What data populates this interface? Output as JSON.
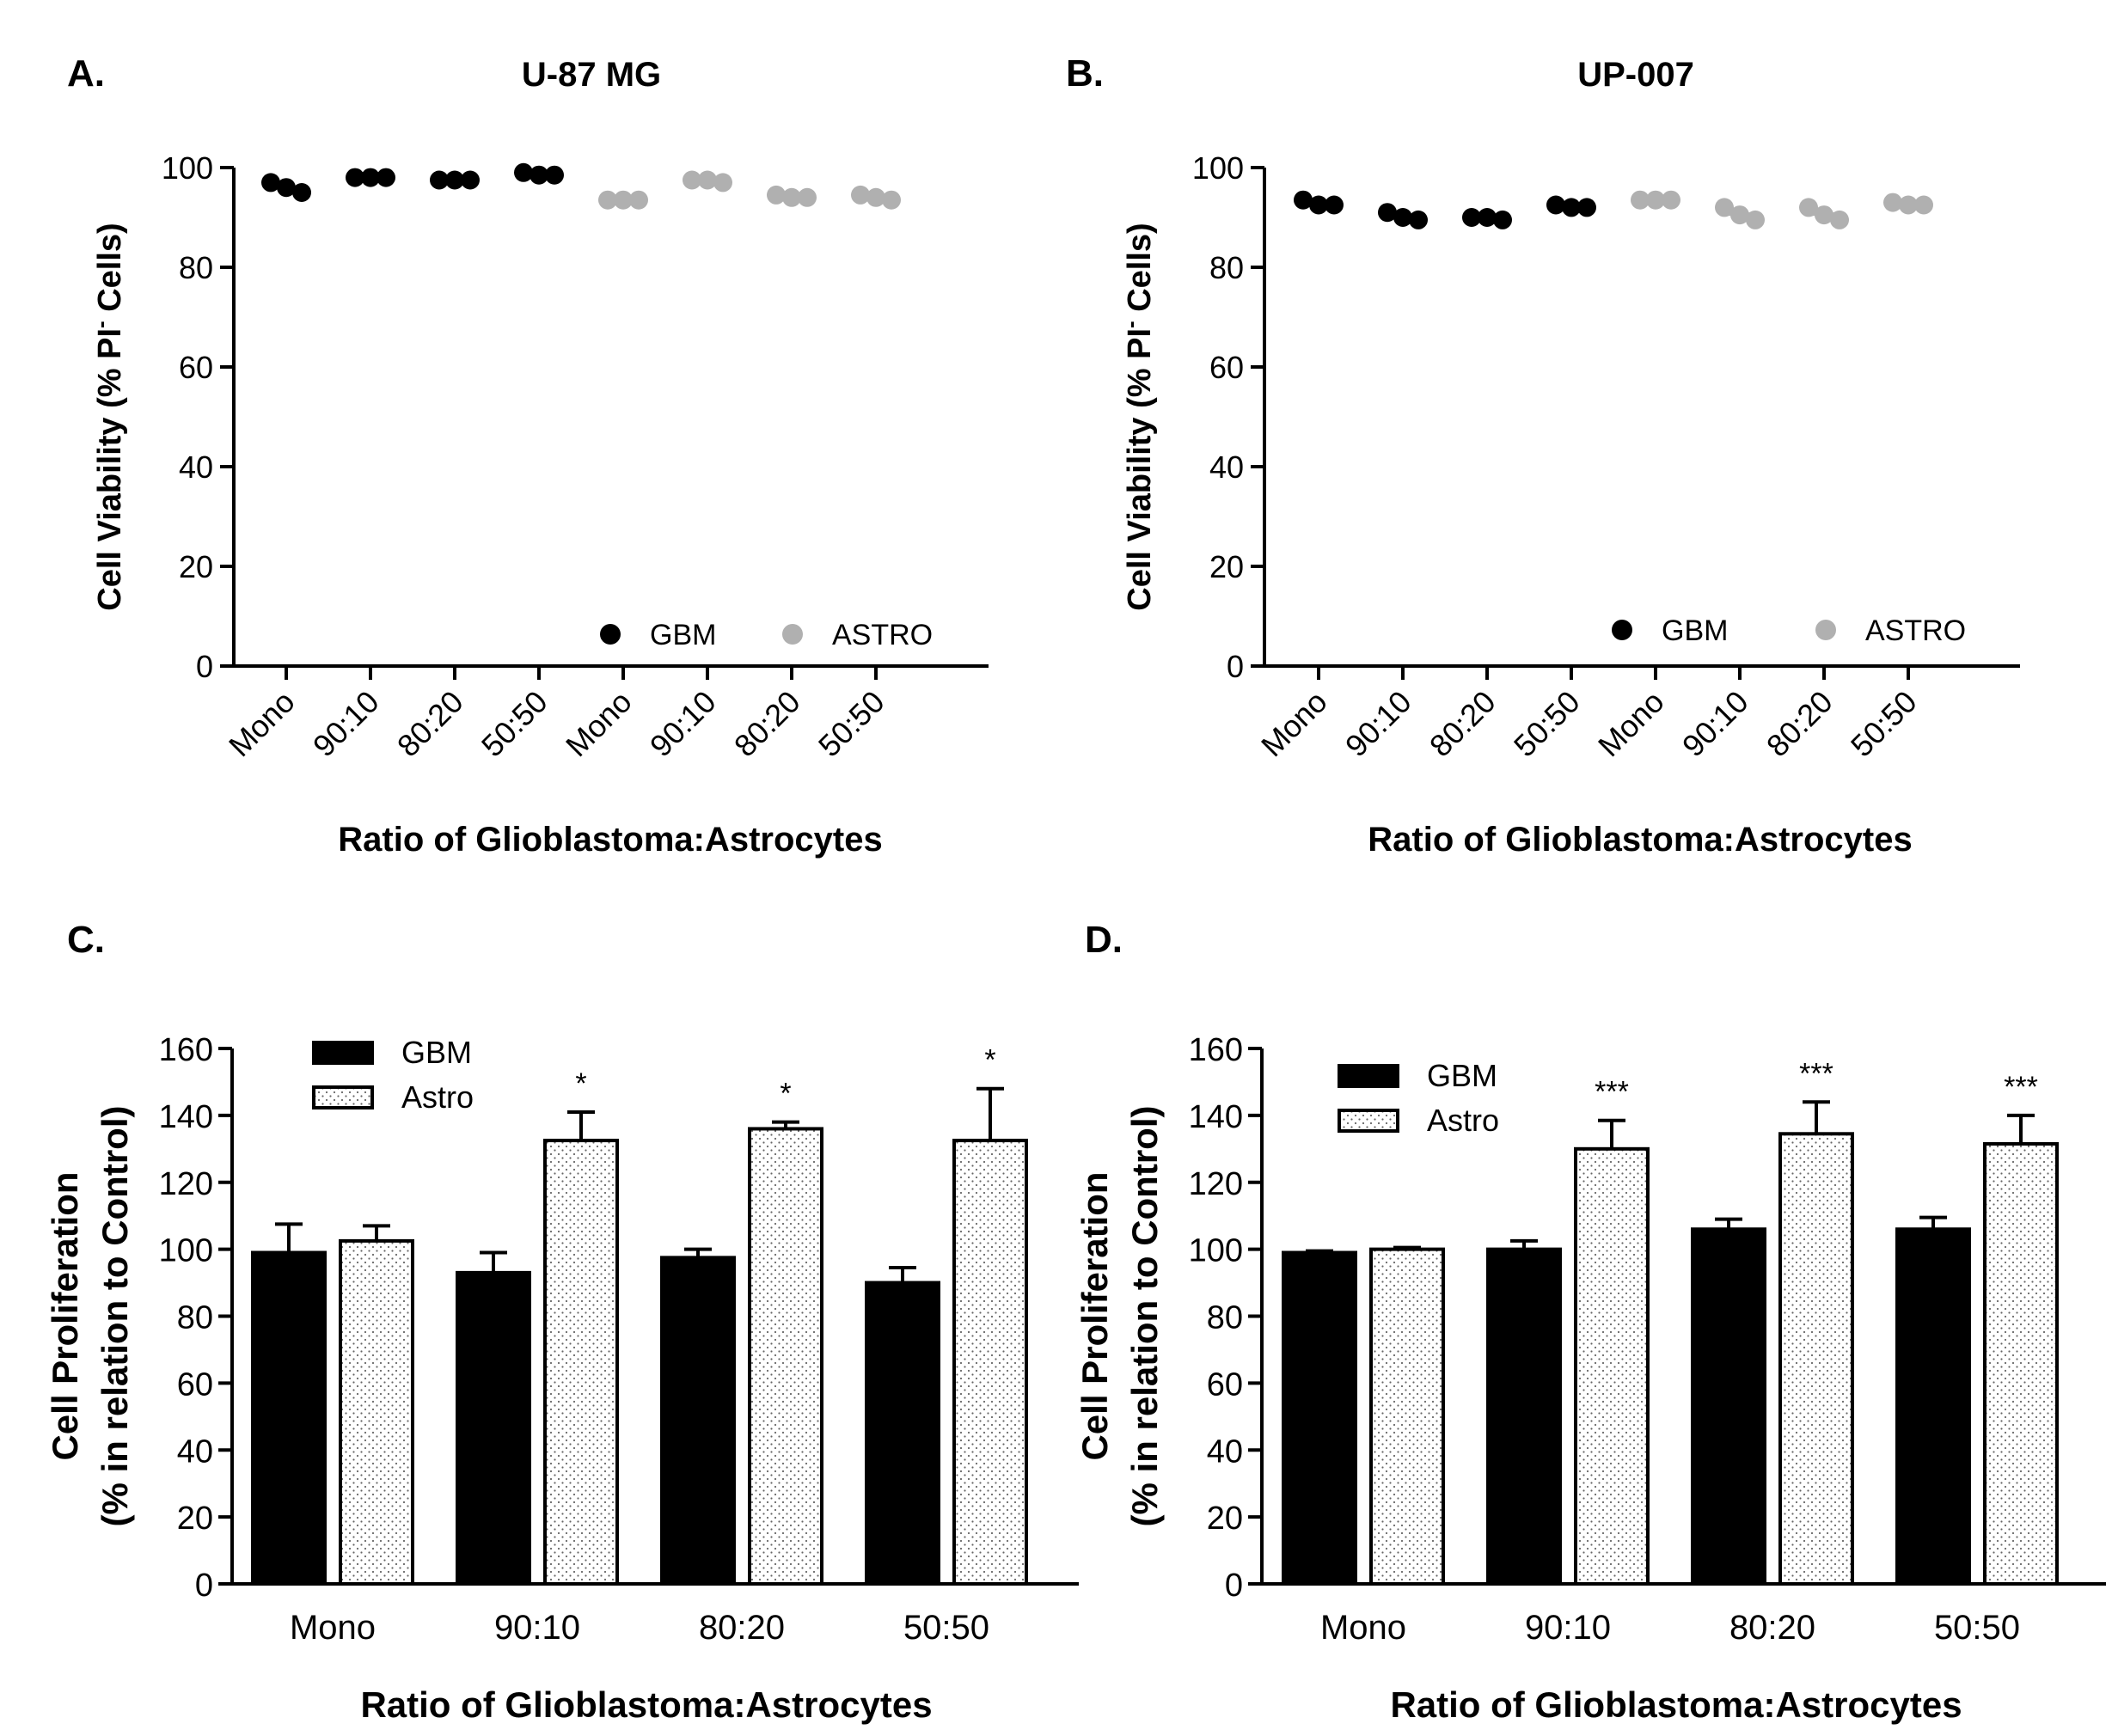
{
  "chart_data": [
    {
      "panel": "A.",
      "type": "scatter",
      "title": "U-87 MG",
      "ylabel": "Cell Viability (% PI",
      "ylabel_sup": "-",
      "ylabel_end": " Cells)",
      "xlabel": "Ratio of Glioblastoma:Astrocytes",
      "ylim": [
        0,
        100
      ],
      "yticks": [
        0,
        20,
        40,
        60,
        80,
        100
      ],
      "categories": [
        "Mono",
        "90:10",
        "80:20",
        "50:50",
        "Mono",
        "90:10",
        "80:20",
        "50:50"
      ],
      "legend": [
        {
          "label": "GBM",
          "color": "#000000"
        },
        {
          "label": "ASTRO",
          "color": "#b0b0b0"
        }
      ],
      "series": [
        {
          "name": "GBM",
          "color": "#000000",
          "points": [
            [
              0,
              97
            ],
            [
              0,
              96
            ],
            [
              0,
              95
            ],
            [
              1,
              98
            ],
            [
              1,
              98
            ],
            [
              1,
              98
            ],
            [
              2,
              97.5
            ],
            [
              2,
              97.5
            ],
            [
              2,
              97.5
            ],
            [
              3,
              99
            ],
            [
              3,
              98.5
            ],
            [
              3,
              98.5
            ]
          ]
        },
        {
          "name": "ASTRO",
          "color": "#b0b0b0",
          "points": [
            [
              4,
              93.5
            ],
            [
              4,
              93.5
            ],
            [
              4,
              93.5
            ],
            [
              5,
              97.5
            ],
            [
              5,
              97.5
            ],
            [
              5,
              97
            ],
            [
              6,
              94.5
            ],
            [
              6,
              94
            ],
            [
              6,
              94
            ],
            [
              7,
              94.5
            ],
            [
              7,
              94
            ],
            [
              7,
              93.5
            ]
          ]
        }
      ]
    },
    {
      "panel": "B.",
      "type": "scatter",
      "title": "UP-007",
      "ylabel": "Cell Viability (% PI",
      "ylabel_sup": "-",
      "ylabel_end": " Cells)",
      "xlabel": "Ratio of Glioblastoma:Astrocytes",
      "ylim": [
        0,
        100
      ],
      "yticks": [
        0,
        20,
        40,
        60,
        80,
        100
      ],
      "categories": [
        "Mono",
        "90:10",
        "80:20",
        "50:50",
        "Mono",
        "90:10",
        "80:20",
        "50:50"
      ],
      "legend": [
        {
          "label": "GBM",
          "color": "#000000"
        },
        {
          "label": "ASTRO",
          "color": "#b0b0b0"
        }
      ],
      "series": [
        {
          "name": "GBM",
          "color": "#000000",
          "points": [
            [
              0,
              93.5
            ],
            [
              0,
              92.5
            ],
            [
              0,
              92.5
            ],
            [
              1,
              91
            ],
            [
              1,
              90
            ],
            [
              1,
              89.5
            ],
            [
              2,
              90
            ],
            [
              2,
              90
            ],
            [
              2,
              89.5
            ],
            [
              3,
              92.5
            ],
            [
              3,
              92
            ],
            [
              3,
              92
            ]
          ]
        },
        {
          "name": "ASTRO",
          "color": "#b0b0b0",
          "points": [
            [
              4,
              93.5
            ],
            [
              4,
              93.5
            ],
            [
              4,
              93.5
            ],
            [
              5,
              92
            ],
            [
              5,
              90.5
            ],
            [
              5,
              89.5
            ],
            [
              6,
              92
            ],
            [
              6,
              90.5
            ],
            [
              6,
              89.5
            ],
            [
              7,
              93
            ],
            [
              7,
              92.5
            ],
            [
              7,
              92.5
            ]
          ]
        }
      ]
    },
    {
      "panel": "C.",
      "type": "bar",
      "ylabel_line1": "Cell Proliferation",
      "ylabel_line2": "(% in relation to  Control)",
      "xlabel": "Ratio of Glioblastoma:Astrocytes",
      "ylim": [
        0,
        160
      ],
      "yticks": [
        0,
        20,
        40,
        60,
        80,
        100,
        120,
        140,
        160
      ],
      "categories": [
        "Mono",
        "90:10",
        "80:20",
        "50:50"
      ],
      "legend": [
        {
          "label": "GBM",
          "style": "solid"
        },
        {
          "label": "Astro",
          "style": "dotted"
        }
      ],
      "series": [
        {
          "name": "GBM",
          "values": [
            99,
            93,
            97.5,
            90
          ],
          "errors": [
            8.5,
            6,
            2.5,
            4.5
          ]
        },
        {
          "name": "Astro",
          "values": [
            102.5,
            132.5,
            136,
            132.5
          ],
          "errors": [
            4.5,
            8.5,
            2,
            15.5
          ]
        }
      ],
      "annotations": [
        "",
        "*",
        "*",
        "*"
      ]
    },
    {
      "panel": "D.",
      "type": "bar",
      "ylabel_line1": "Cell Proliferation",
      "ylabel_line2": "(% in relation to  Control)",
      "xlabel": "Ratio of Glioblastoma:Astrocytes",
      "ylim": [
        0,
        160
      ],
      "yticks": [
        0,
        20,
        40,
        60,
        80,
        100,
        120,
        140,
        160
      ],
      "categories": [
        "Mono",
        "90:10",
        "80:20",
        "50:50"
      ],
      "legend": [
        {
          "label": "GBM",
          "style": "solid"
        },
        {
          "label": "Astro",
          "style": "dotted"
        }
      ],
      "series": [
        {
          "name": "GBM",
          "values": [
            99,
            100,
            106,
            106
          ],
          "errors": [
            0.5,
            2.5,
            3,
            3.5
          ]
        },
        {
          "name": "Astro",
          "values": [
            100,
            130,
            134.5,
            131.5
          ],
          "errors": [
            0.5,
            8.5,
            9.5,
            8.5
          ]
        }
      ],
      "annotations": [
        "",
        "***",
        "***",
        "***"
      ]
    }
  ]
}
